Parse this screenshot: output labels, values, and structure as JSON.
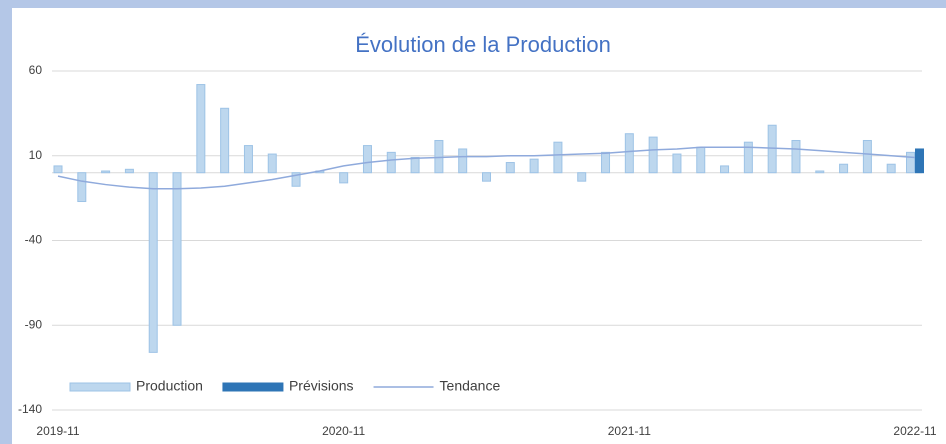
{
  "chart_data": {
    "type": "bar",
    "title": "Évolution de la Production",
    "categories": [
      "2019-11",
      null,
      null,
      null,
      null,
      null,
      null,
      null,
      null,
      null,
      null,
      null,
      "2020-11",
      null,
      null,
      null,
      null,
      null,
      null,
      null,
      null,
      null,
      null,
      null,
      "2021-11",
      null,
      null,
      null,
      null,
      null,
      null,
      null,
      null,
      null,
      null,
      null,
      "2022-11"
    ],
    "series": [
      {
        "name": "Production",
        "kind": "bar",
        "color": "#bdd7ee",
        "values": [
          4,
          -17,
          1,
          2,
          -106,
          -90,
          52,
          38,
          16,
          11,
          -8,
          1,
          -6,
          16,
          12,
          9,
          19,
          14,
          -5,
          6,
          8,
          18,
          -5,
          12,
          23,
          21,
          11,
          15,
          4,
          18,
          28,
          19,
          1,
          5,
          19,
          5,
          12
        ]
      },
      {
        "name": "Prévisions",
        "kind": "bar",
        "color": "#2e75b6",
        "values": [
          null,
          null,
          null,
          null,
          null,
          null,
          null,
          null,
          null,
          null,
          null,
          null,
          null,
          null,
          null,
          null,
          null,
          null,
          null,
          null,
          null,
          null,
          null,
          null,
          null,
          null,
          null,
          null,
          null,
          null,
          null,
          null,
          null,
          null,
          null,
          null,
          14
        ]
      },
      {
        "name": "Tendance",
        "kind": "line",
        "color": "#8faadc",
        "values": [
          -2,
          -5,
          -7,
          -8.5,
          -9.5,
          -9.5,
          -9,
          -8,
          -6,
          -4,
          -1.5,
          1,
          4,
          6,
          7.5,
          8.5,
          9,
          9.5,
          9.5,
          10,
          10,
          10.5,
          11,
          11.5,
          12.5,
          13.5,
          14,
          15,
          15,
          15,
          14.5,
          14,
          13,
          12,
          11,
          10,
          9
        ]
      }
    ],
    "ylim": [
      -140,
      60
    ],
    "yticks": [
      -140,
      -90,
      -40,
      10,
      60
    ],
    "grid": true,
    "legend": "bottom-left"
  }
}
